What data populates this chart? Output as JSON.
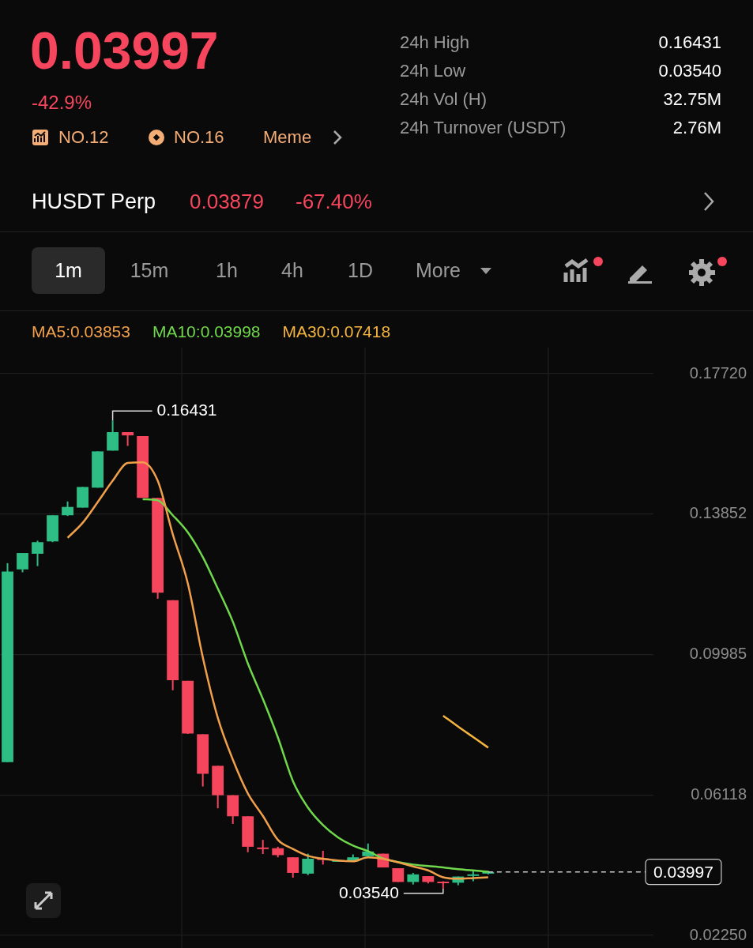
{
  "chart_data": {
    "type": "candlestick",
    "title": "0.03997",
    "subtitle": "-42.9%",
    "categories": [
      null,
      null,
      null,
      null,
      null,
      null,
      null,
      null,
      null,
      null,
      null,
      null,
      null,
      null,
      null,
      null,
      null,
      null,
      null,
      null,
      null,
      null,
      null,
      null,
      null,
      null,
      null,
      null,
      null,
      null,
      null,
      null,
      null
    ],
    "ohlc": [
      [
        0.0702,
        0.125,
        0.0702,
        0.1227
      ],
      [
        0.1233,
        0.1278,
        0.1225,
        0.1278
      ],
      [
        0.1276,
        0.1312,
        0.1242,
        0.1308
      ],
      [
        0.131,
        0.1382,
        0.1308,
        0.1382
      ],
      [
        0.1382,
        0.142,
        0.138,
        0.1405
      ],
      [
        0.1403,
        0.146,
        0.1403,
        0.146
      ],
      [
        0.1458,
        0.1558,
        0.1458,
        0.1558
      ],
      [
        0.156,
        0.16431,
        0.156,
        0.1611
      ],
      [
        0.1611,
        0.1611,
        0.1573,
        0.1602
      ],
      [
        0.16,
        0.16,
        0.143,
        0.143
      ],
      [
        0.143,
        0.143,
        0.1152,
        0.1169
      ],
      [
        0.1148,
        0.1148,
        0.09,
        0.0928
      ],
      [
        0.0926,
        0.0926,
        0.078,
        0.0781
      ],
      [
        0.0779,
        0.0779,
        0.0635,
        0.067
      ],
      [
        0.0692,
        0.0692,
        0.0575,
        0.0611
      ],
      [
        0.0611,
        0.0611,
        0.0532,
        0.0553
      ],
      [
        0.0553,
        0.0553,
        0.0454,
        0.0469
      ],
      [
        0.0467,
        0.0488,
        0.0449,
        0.0465
      ],
      [
        0.0465,
        0.0469,
        0.044,
        0.0446
      ],
      [
        0.044,
        0.044,
        0.0384,
        0.0397
      ],
      [
        0.0395,
        0.045,
        0.0391,
        0.0436
      ],
      [
        0.0437,
        0.0458,
        0.042,
        0.0435
      ],
      [
        0.043,
        0.0433,
        0.0429,
        0.0432
      ],
      [
        0.0429,
        0.0448,
        0.0429,
        0.044
      ],
      [
        0.0443,
        0.0478,
        0.0442,
        0.0456
      ],
      [
        0.045,
        0.045,
        0.0412,
        0.0412
      ],
      [
        0.041,
        0.041,
        0.0372,
        0.0372
      ],
      [
        0.0372,
        0.0397,
        0.0365,
        0.0393
      ],
      [
        0.0388,
        0.0388,
        0.0368,
        0.0372
      ],
      [
        0.0373,
        0.0374,
        0.0354,
        0.0371
      ],
      [
        0.037,
        0.0387,
        0.0363,
        0.0387
      ],
      [
        0.039,
        0.0405,
        0.0374,
        0.0393
      ],
      [
        0.0395,
        0.0403,
        0.0393,
        0.03997
      ]
    ],
    "colors": [
      "#2ebd85",
      "#2ebd85",
      "#2ebd85",
      "#2ebd85",
      "#2ebd85",
      "#2ebd85",
      "#2ebd85",
      "#2ebd85",
      "#f6465d",
      "#f6465d",
      "#f6465d",
      "#f6465d",
      "#f6465d",
      "#f6465d",
      "#f6465d",
      "#f6465d",
      "#f6465d",
      "#f6465d",
      "#f6465d",
      "#f6465d",
      "#2ebd85",
      "#f6465d",
      "#2ebd85",
      "#2ebd85",
      "#2ebd85",
      "#f6465d",
      "#f6465d",
      "#2ebd85",
      "#f6465d",
      "#f6465d",
      "#2ebd85",
      "#2ebd85",
      "#2ebd85"
    ],
    "series": [
      {
        "type": "line",
        "name": "MA5:0.03853",
        "color": "#f0a04b",
        "values": [
          null,
          null,
          null,
          null,
          0.132,
          0.1361,
          0.1418,
          0.1477,
          0.1526,
          0.1528,
          0.1477,
          0.133,
          0.1195,
          0.0991,
          0.0824,
          0.0709,
          0.0616,
          0.0554,
          0.0488,
          0.0463,
          0.0444,
          0.0436,
          0.0431,
          0.0429,
          0.044,
          0.0436,
          0.0426,
          0.0415,
          0.0404,
          0.0385,
          0.0381,
          0.0383,
          0.0385
        ]
      },
      {
        "type": "line",
        "name": "MA10:0.03998",
        "color": "#6fd84b",
        "values": [
          null,
          null,
          null,
          null,
          null,
          null,
          null,
          null,
          null,
          0.1426,
          0.1423,
          0.1382,
          0.1335,
          0.1267,
          0.118,
          0.1089,
          0.0974,
          0.0876,
          0.077,
          0.065,
          0.0577,
          0.0529,
          0.0495,
          0.0472,
          0.0457,
          0.0437,
          0.0427,
          0.042,
          0.0416,
          0.0412,
          0.0407,
          0.0404,
          0.04
        ]
      },
      {
        "type": "line",
        "name": "MA30:0.07418",
        "color": "#f4b43e",
        "values": [
          null,
          null,
          null,
          null,
          null,
          null,
          null,
          null,
          null,
          null,
          null,
          null,
          null,
          null,
          null,
          null,
          null,
          null,
          null,
          null,
          null,
          null,
          null,
          null,
          null,
          null,
          null,
          null,
          null,
          0.083,
          0.08,
          0.0771,
          0.0742
        ]
      }
    ],
    "ylim": [
      0.0225,
      0.1772
    ],
    "yticks": [
      {
        "value": 0.1772,
        "label": "0.17720"
      },
      0.13852,
      0.09985,
      0.06118,
      {
        "value": 0.0225,
        "label": "0.02250"
      }
    ],
    "grid": true,
    "legend": "top",
    "marker": "none",
    "tick_labels": "y",
    "ref_lines": [
      {
        "axis": "y",
        "value": 0.03997,
        "label": "0.03997",
        "line_style": "dashed",
        "color": "#cccccc"
      }
    ],
    "annotations": [
      "NO.12",
      "NO.16",
      "Meme",
      "24h High",
      "0.16431",
      "24h Low",
      "0.03540",
      "24h Vol (H)",
      "32.75M",
      "24h Turnover (USDT)",
      "2.76M",
      "HUSDT Perp",
      "0.03879",
      "-67.40%",
      "1m",
      "15m",
      "1h",
      "4h",
      "1D",
      "More",
      "0.16431",
      "0.03540"
    ]
  }
}
